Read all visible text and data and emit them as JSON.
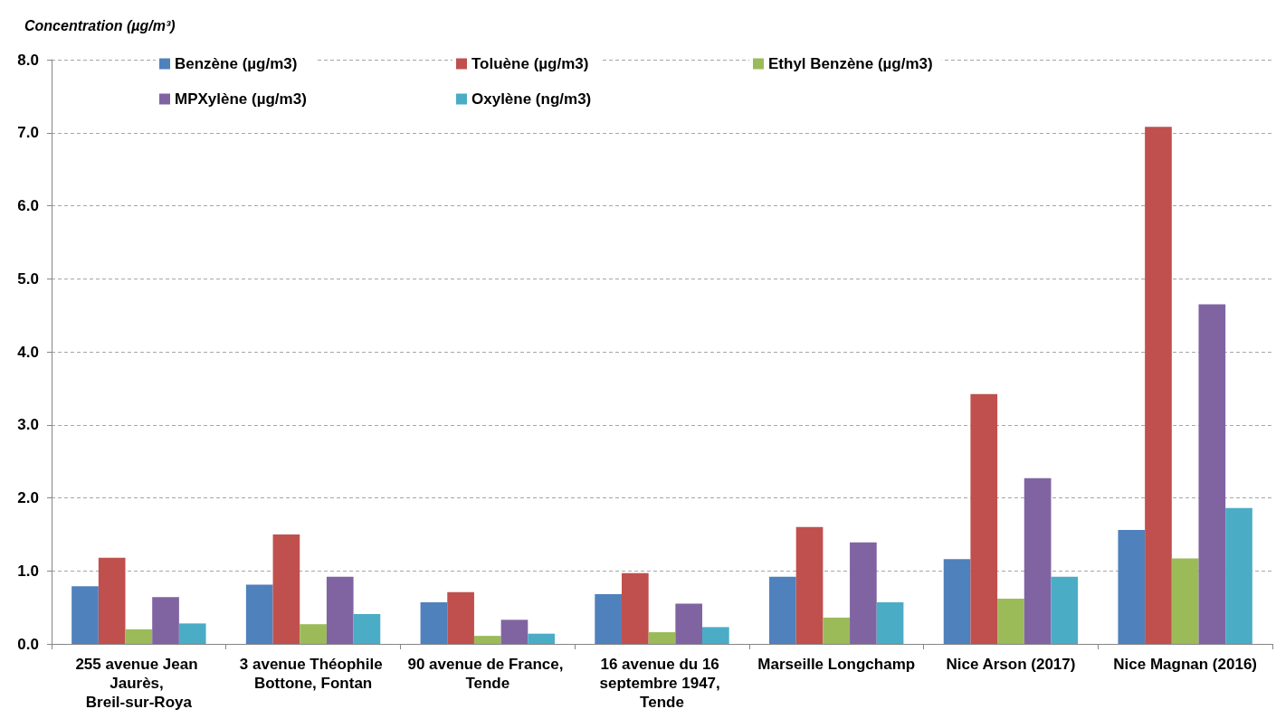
{
  "chart_data": {
    "type": "bar",
    "ylabel": "Concentration (µg/m³)",
    "categories": [
      "255 avenue Jean Jaurès, Breil-sur-Roya",
      "3 avenue Théophile Bottone, Fontan",
      "90 avenue de France, Tende",
      "16 avenue du 16 septembre 1947, Tende",
      "Marseille Longchamp",
      "Nice Arson (2017)",
      "Nice Magnan (2016)"
    ],
    "series": [
      {
        "name": "Benzène (µg/m3)",
        "color": "#4f81bd",
        "values": [
          0.79,
          0.81,
          0.57,
          0.68,
          0.92,
          1.16,
          1.56
        ]
      },
      {
        "name": "Toluène (µg/m3)",
        "color": "#c0504d",
        "values": [
          1.18,
          1.5,
          0.71,
          0.97,
          1.6,
          3.42,
          7.08
        ]
      },
      {
        "name": "Ethyl Benzène (µg/m3)",
        "color": "#9bbb59",
        "values": [
          0.2,
          0.27,
          0.11,
          0.16,
          0.36,
          0.62,
          1.17
        ]
      },
      {
        "name": "MPXylène (µg/m3)",
        "color": "#8064a2",
        "values": [
          0.64,
          0.92,
          0.33,
          0.55,
          1.39,
          2.27,
          4.65
        ]
      },
      {
        "name": "Oxylène (ng/m3)",
        "color": "#4bacc6",
        "values": [
          0.28,
          0.41,
          0.14,
          0.23,
          0.57,
          0.92,
          1.86
        ]
      }
    ],
    "ylim": [
      0,
      8
    ],
    "yticks": [
      {
        "value": 0,
        "label": "0.0"
      },
      {
        "value": 1,
        "label": "1.0"
      },
      {
        "value": 2,
        "label": "2.0"
      },
      {
        "value": 3,
        "label": "3.0"
      },
      {
        "value": 4,
        "label": "4.0"
      },
      {
        "value": 5,
        "label": "5.0"
      },
      {
        "value": 6,
        "label": "6.0"
      },
      {
        "value": 7,
        "label": "7.0"
      },
      {
        "value": 8,
        "label": "8.0"
      }
    ],
    "grid": "y",
    "legend": "top"
  }
}
